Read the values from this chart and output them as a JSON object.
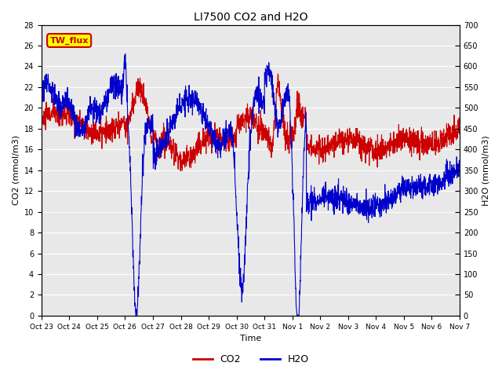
{
  "title": "LI7500 CO2 and H2O",
  "xlabel": "Time",
  "ylabel_left": "CO2 (mmol/m3)",
  "ylabel_right": "H2O (mmol/m3)",
  "xlim": [
    0,
    15
  ],
  "ylim_left": [
    0,
    28
  ],
  "ylim_right": [
    0,
    700
  ],
  "yticks_left": [
    0,
    2,
    4,
    6,
    8,
    10,
    12,
    14,
    16,
    18,
    20,
    22,
    24,
    26,
    28
  ],
  "yticks_right": [
    0,
    50,
    100,
    150,
    200,
    250,
    300,
    350,
    400,
    450,
    500,
    550,
    600,
    650,
    700
  ],
  "xtick_labels": [
    "Oct 23",
    "Oct 24",
    "Oct 25",
    "Oct 26",
    "Oct 27",
    "Oct 28",
    "Oct 29",
    "Oct 30",
    "Oct 31",
    "Nov 1",
    "Nov 2",
    "Nov 3",
    "Nov 4",
    "Nov 5",
    "Nov 6",
    "Nov 7"
  ],
  "co2_color": "#cc0000",
  "h2o_color": "#0000cc",
  "background_color": "#e8e8e8",
  "grid_color": "#ffffff",
  "annotation_text": "TW_flux",
  "annotation_bg": "#ffff00",
  "annotation_border": "#cc0000",
  "figsize": [
    6.4,
    4.8
  ],
  "dpi": 100
}
